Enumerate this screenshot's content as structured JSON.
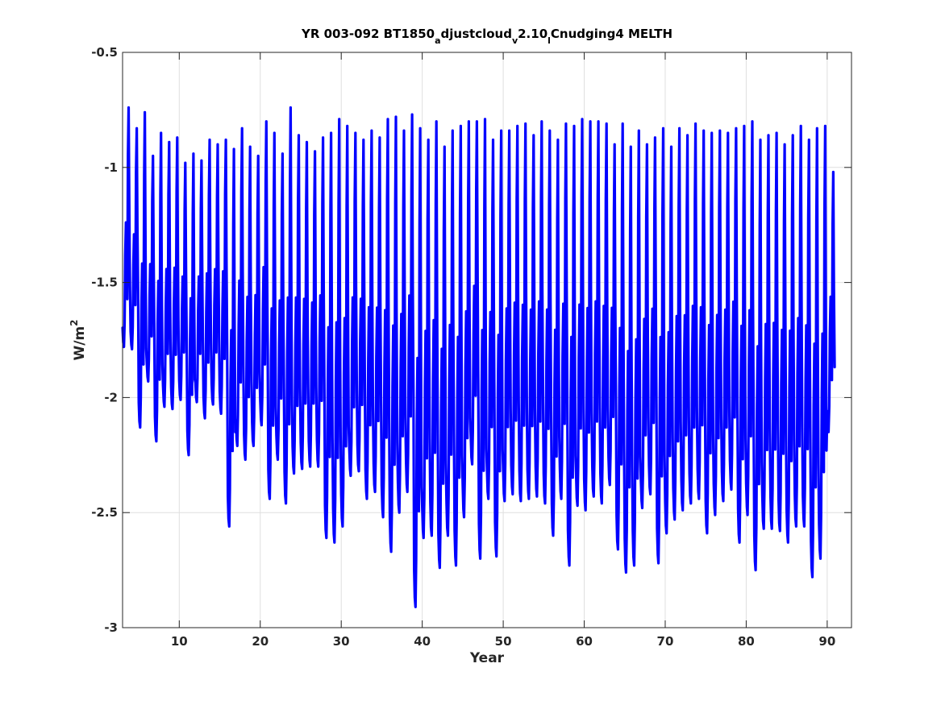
{
  "chart_data": {
    "type": "line",
    "title_parts": [
      {
        "text": "YR 003-092 BT1850",
        "sub": false
      },
      {
        "text": "a",
        "sub": true
      },
      {
        "text": "djustcloud",
        "sub": false
      },
      {
        "text": "v",
        "sub": true
      },
      {
        "text": "2.10",
        "sub": false
      },
      {
        "text": "l",
        "sub": true
      },
      {
        "text": "Cnudging4 MELTH",
        "sub": false
      }
    ],
    "xlabel": "Year",
    "ylabel_base": "W/m",
    "ylabel_sup": "2",
    "xlim": [
      3,
      93
    ],
    "ylim": [
      -3,
      -0.5
    ],
    "xticks": [
      10,
      20,
      30,
      40,
      50,
      60,
      70,
      80,
      90
    ],
    "xtick_labels": [
      "10",
      "20",
      "30",
      "40",
      "50",
      "60",
      "70",
      "80",
      "90"
    ],
    "yticks": [
      -3,
      -2.5,
      -2,
      -1.5,
      -1,
      -0.5
    ],
    "ytick_labels": [
      "-3",
      "-2.5",
      "-2",
      "-1.5",
      "-1",
      "-0.5"
    ],
    "grid": true,
    "series": [
      {
        "color": "#0000ff",
        "x_start": 3.0,
        "x_step": 0.08333333,
        "yearly_minima": [
          -1.78,
          -1.79,
          -2.13,
          -1.93,
          -2.19,
          -2.04,
          -2.05,
          -2.01,
          -2.25,
          -2.02,
          -2.09,
          -2.03,
          -2.07,
          -2.56,
          -2.21,
          -2.27,
          -2.21,
          -2.12,
          -2.44,
          -2.27,
          -2.46,
          -2.33,
          -2.31,
          -2.3,
          -2.3,
          -2.61,
          -2.63,
          -2.56,
          -2.34,
          -2.32,
          -2.44,
          -2.41,
          -2.52,
          -2.67,
          -2.5,
          -2.41,
          -2.91,
          -2.61,
          -2.6,
          -2.74,
          -2.6,
          -2.73,
          -2.52,
          -2.29,
          -2.7,
          -2.44,
          -2.69,
          -2.45,
          -2.42,
          -2.45,
          -2.44,
          -2.43,
          -2.46,
          -2.6,
          -2.44,
          -2.73,
          -2.47,
          -2.49,
          -2.43,
          -2.46,
          -2.38,
          -2.66,
          -2.76,
          -2.73,
          -2.48,
          -2.42,
          -2.72,
          -2.59,
          -2.53,
          -2.49,
          -2.46,
          -2.44,
          -2.59,
          -2.51,
          -2.45,
          -2.4,
          -2.63,
          -2.51,
          -2.75,
          -2.57,
          -2.57,
          -2.58,
          -2.63,
          -2.56,
          -2.56,
          -2.78,
          -2.7,
          -2.15
        ],
        "yearly_maxima": [
          -0.74,
          -0.83,
          -0.76,
          -0.95,
          -0.85,
          -0.89,
          -0.87,
          -0.98,
          -0.94,
          -0.97,
          -0.88,
          -0.9,
          -0.88,
          -0.92,
          -0.83,
          -0.91,
          -0.95,
          -0.8,
          -0.85,
          -0.94,
          -0.74,
          -0.86,
          -0.89,
          -0.93,
          -0.87,
          -0.85,
          -0.79,
          -0.82,
          -0.85,
          -0.88,
          -0.84,
          -0.87,
          -0.79,
          -0.78,
          -0.84,
          -0.77,
          -0.83,
          -0.88,
          -0.8,
          -0.91,
          -0.84,
          -0.82,
          -0.8,
          -0.8,
          -0.79,
          -0.88,
          -0.84,
          -0.84,
          -0.82,
          -0.81,
          -0.86,
          -0.8,
          -0.84,
          -0.88,
          -0.81,
          -0.82,
          -0.79,
          -0.8,
          -0.8,
          -0.81,
          -0.9,
          -0.81,
          -0.91,
          -0.84,
          -0.9,
          -0.87,
          -0.83,
          -0.91,
          -0.83,
          -0.86,
          -0.81,
          -0.84,
          -0.85,
          -0.84,
          -0.85,
          -0.83,
          -0.82,
          -0.8,
          -0.88,
          -0.86,
          -0.85,
          -0.9,
          -0.86,
          -0.82,
          -0.88,
          -0.83,
          -0.82,
          -1.02
        ],
        "seasonal_shape": [
          0.08,
          0.02,
          0.0,
          0.1,
          0.38,
          0.52,
          0.38,
          0.2,
          0.8,
          1.0,
          0.55,
          0.25
        ]
      }
    ]
  }
}
